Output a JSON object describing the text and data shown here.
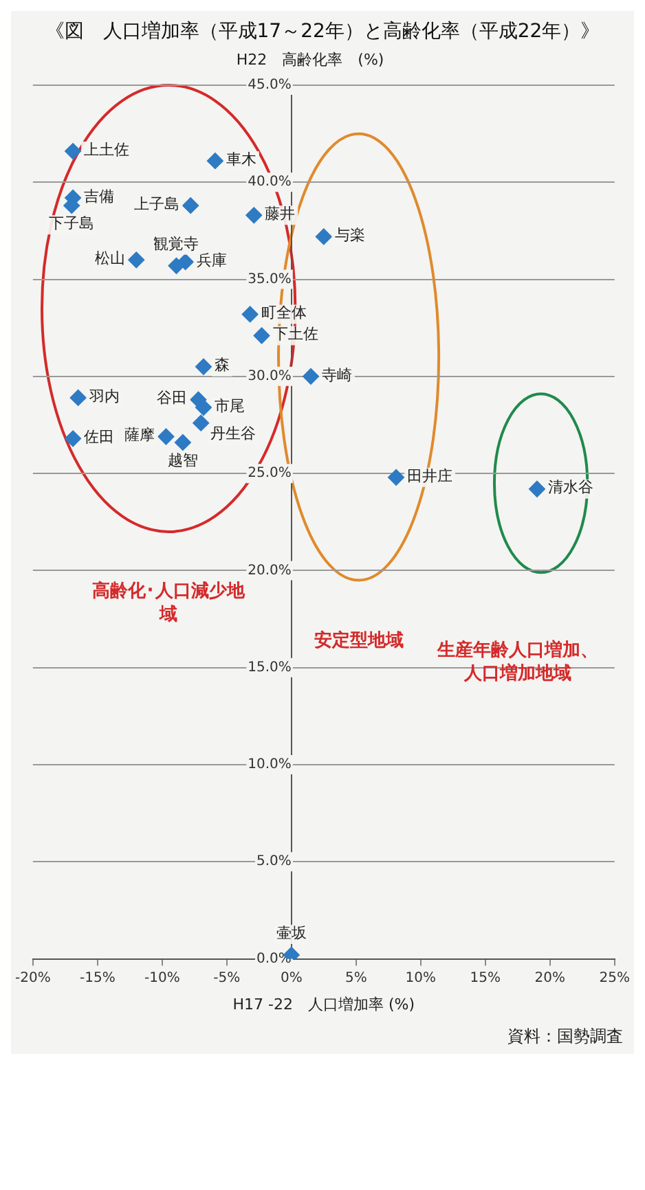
{
  "chart_data": {
    "type": "scatter",
    "title": "《図　人口増加率（平成17～22年）と高齢化率（平成22年）》",
    "xlabel": "H17 -22　人口増加率 (%)",
    "ylabel": "H22　高齢化率　(%)",
    "x": [
      19.0,
      8.1,
      2.5,
      1.5,
      0.0,
      -2.9,
      -2.3,
      -3.2,
      -5.9,
      -7.8,
      -8.2,
      -8.9,
      -6.8,
      -6.8,
      -7.2,
      -7.0,
      -8.4,
      -9.7,
      -12.0,
      -16.9,
      -16.9,
      -17.0,
      -16.5,
      -16.9
    ],
    "values": [
      24.2,
      24.8,
      37.2,
      30.0,
      0.2,
      38.3,
      32.1,
      33.2,
      41.1,
      38.8,
      35.9,
      35.7,
      30.5,
      28.4,
      28.8,
      27.6,
      26.6,
      26.9,
      36.0,
      41.6,
      39.2,
      38.8,
      28.9,
      26.8
    ],
    "color": "#2e7bc4",
    "marker": "diamond",
    "grid": "y",
    "xlim": [
      -20,
      25
    ],
    "xticks": [
      {
        "value": -20,
        "label": "-20%"
      },
      {
        "value": -15,
        "label": "-15%"
      },
      {
        "value": -10,
        "label": "-10%"
      },
      {
        "value": -5,
        "label": "-5%"
      },
      {
        "value": 0,
        "label": "0%"
      },
      {
        "value": 5,
        "label": "5%"
      },
      {
        "value": 10,
        "label": "10%"
      },
      {
        "value": 15,
        "label": "15%"
      },
      {
        "value": 20,
        "label": "20%"
      },
      {
        "value": 25,
        "label": "25%"
      }
    ],
    "ylim": [
      0,
      45
    ],
    "yticks": [
      {
        "value": 0,
        "label": "0.0%"
      },
      {
        "value": 5,
        "label": "5.0%"
      },
      {
        "value": 10,
        "label": "10.0%"
      },
      {
        "value": 15,
        "label": "15.0%"
      },
      {
        "value": 20,
        "label": "20.0%"
      },
      {
        "value": 25,
        "label": "25.0%"
      },
      {
        "value": 30,
        "label": "30.0%"
      },
      {
        "value": 35,
        "label": "35.0%"
      },
      {
        "value": 40,
        "label": "40.0%"
      },
      {
        "value": 45,
        "label": "45.0%"
      }
    ],
    "annotations": [
      {
        "text": "清水谷",
        "x": 19.0,
        "y": 24.2
      },
      {
        "text": "田井庄",
        "x": 8.1,
        "y": 24.8
      },
      {
        "text": "与楽",
        "x": 2.5,
        "y": 37.2
      },
      {
        "text": "寺崎",
        "x": 1.5,
        "y": 30.0
      },
      {
        "text": "壷坂",
        "x": 0.0,
        "y": 0.2
      },
      {
        "text": "藤井",
        "x": -2.9,
        "y": 38.3
      },
      {
        "text": "下土佐",
        "x": -2.3,
        "y": 32.1
      },
      {
        "text": "町全体",
        "x": -3.2,
        "y": 33.2
      },
      {
        "text": "車木",
        "x": -5.9,
        "y": 41.1
      },
      {
        "text": "上子島",
        "x": -7.8,
        "y": 38.8
      },
      {
        "text": "兵庫",
        "x": -8.2,
        "y": 35.9
      },
      {
        "text": "観覚寺",
        "x": -8.9,
        "y": 35.7
      },
      {
        "text": "森",
        "x": -6.8,
        "y": 30.5
      },
      {
        "text": "市尾",
        "x": -6.8,
        "y": 28.4
      },
      {
        "text": "谷田",
        "x": -7.2,
        "y": 28.8
      },
      {
        "text": "丹生谷",
        "x": -7.0,
        "y": 27.6
      },
      {
        "text": "越智",
        "x": -8.4,
        "y": 26.6
      },
      {
        "text": "薩摩",
        "x": -9.7,
        "y": 26.9
      },
      {
        "text": "松山",
        "x": -12.0,
        "y": 36.0
      },
      {
        "text": "上土佐",
        "x": -16.9,
        "y": 41.6
      },
      {
        "text": "吉備",
        "x": -16.9,
        "y": 39.2
      },
      {
        "text": "下子島",
        "x": -17.0,
        "y": 38.8
      },
      {
        "text": "羽内",
        "x": -16.5,
        "y": 28.9
      },
      {
        "text": "佐田",
        "x": -16.9,
        "y": 26.8
      },
      "高齢化･人口減少地域",
      "安定型地域",
      "生産年齢人口増加、人口増加地域",
      "資料：国勢調査"
    ]
  }
}
